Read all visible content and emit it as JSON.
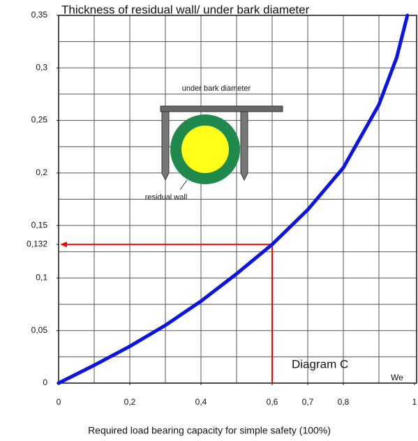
{
  "chart_data": {
    "type": "line",
    "title": "Thickness of residual wall/ under bark diameter",
    "x_label": "Required load bearing capacity for simple safety (100%)",
    "x": [
      0,
      0.1,
      0.2,
      0.3,
      0.4,
      0.5,
      0.6,
      0.7,
      0.8,
      0.9,
      0.95,
      0.98
    ],
    "series": [
      {
        "color": "#0a14e6",
        "values": [
          0,
          0.017,
          0.035,
          0.055,
          0.078,
          0.104,
          0.132,
          0.165,
          0.205,
          0.265,
          0.31,
          0.35
        ]
      }
    ],
    "xlim": [
      0,
      1
    ],
    "ylim": [
      0,
      0.35
    ],
    "xticks": [
      0,
      {
        "value": 0.2,
        "label": "0,2"
      },
      {
        "value": 0.4,
        "label": "0,4"
      },
      {
        "value": 0.6,
        "label": "0,6"
      },
      {
        "value": 0.7,
        "label": "0,7"
      },
      {
        "value": 0.8,
        "label": "0,8"
      },
      1
    ],
    "yticks": [
      0,
      {
        "value": 0.05,
        "label": "0,05"
      },
      {
        "value": 0.1,
        "label": "0,1"
      },
      {
        "value": 0.132,
        "label": "0,132"
      },
      {
        "value": 0.15,
        "label": "0,15"
      },
      {
        "value": 0.2,
        "label": "0,2"
      },
      {
        "value": 0.25,
        "label": "0,25"
      },
      {
        "value": 0.3,
        "label": "0,3"
      },
      {
        "value": 0.35,
        "label": "0,35"
      }
    ],
    "grid": true,
    "reference": {
      "x": 0.6,
      "y": 0.132,
      "color": "#ff0000"
    },
    "annotations": [
      "Diagram C",
      "We"
    ],
    "inset": {
      "top_label": "under bark diameter",
      "bottom_label": "residual wall"
    }
  }
}
